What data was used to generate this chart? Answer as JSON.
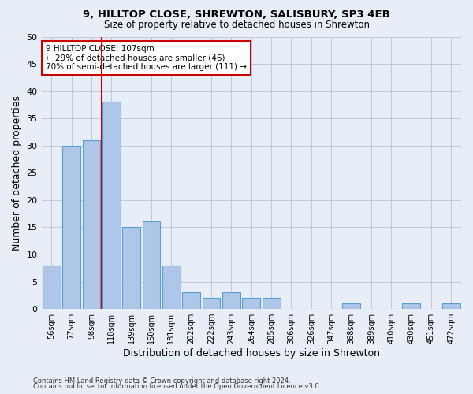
{
  "title1": "9, HILLTOP CLOSE, SHREWTON, SALISBURY, SP3 4EB",
  "title2": "Size of property relative to detached houses in Shrewton",
  "xlabel": "Distribution of detached houses by size in Shrewton",
  "ylabel": "Number of detached properties",
  "footer1": "Contains HM Land Registry data © Crown copyright and database right 2024.",
  "footer2": "Contains public sector information licensed under the Open Government Licence v3.0.",
  "categories": [
    "56sqm",
    "77sqm",
    "98sqm",
    "118sqm",
    "139sqm",
    "160sqm",
    "181sqm",
    "202sqm",
    "222sqm",
    "243sqm",
    "264sqm",
    "285sqm",
    "306sqm",
    "326sqm",
    "347sqm",
    "368sqm",
    "389sqm",
    "410sqm",
    "430sqm",
    "451sqm",
    "472sqm"
  ],
  "values": [
    8,
    30,
    31,
    38,
    15,
    16,
    8,
    3,
    2,
    3,
    2,
    2,
    0,
    0,
    0,
    1,
    0,
    0,
    1,
    0,
    1
  ],
  "bar_color": "#aec6e8",
  "bar_edge_color": "#5a9fd4",
  "ylim": [
    0,
    50
  ],
  "yticks": [
    0,
    5,
    10,
    15,
    20,
    25,
    30,
    35,
    40,
    45,
    50
  ],
  "vline_pos": 2.5,
  "vline_color": "#cc0000",
  "ann_line1": "9 HILLTOP CLOSE: 107sqm",
  "ann_line2": "← 29% of detached houses are smaller (46)",
  "ann_line3": "70% of semi-detached houses are larger (111) →",
  "annotation_box_color": "#ffffff",
  "annotation_box_edge": "#cc0000",
  "bg_color": "#e8eef8"
}
